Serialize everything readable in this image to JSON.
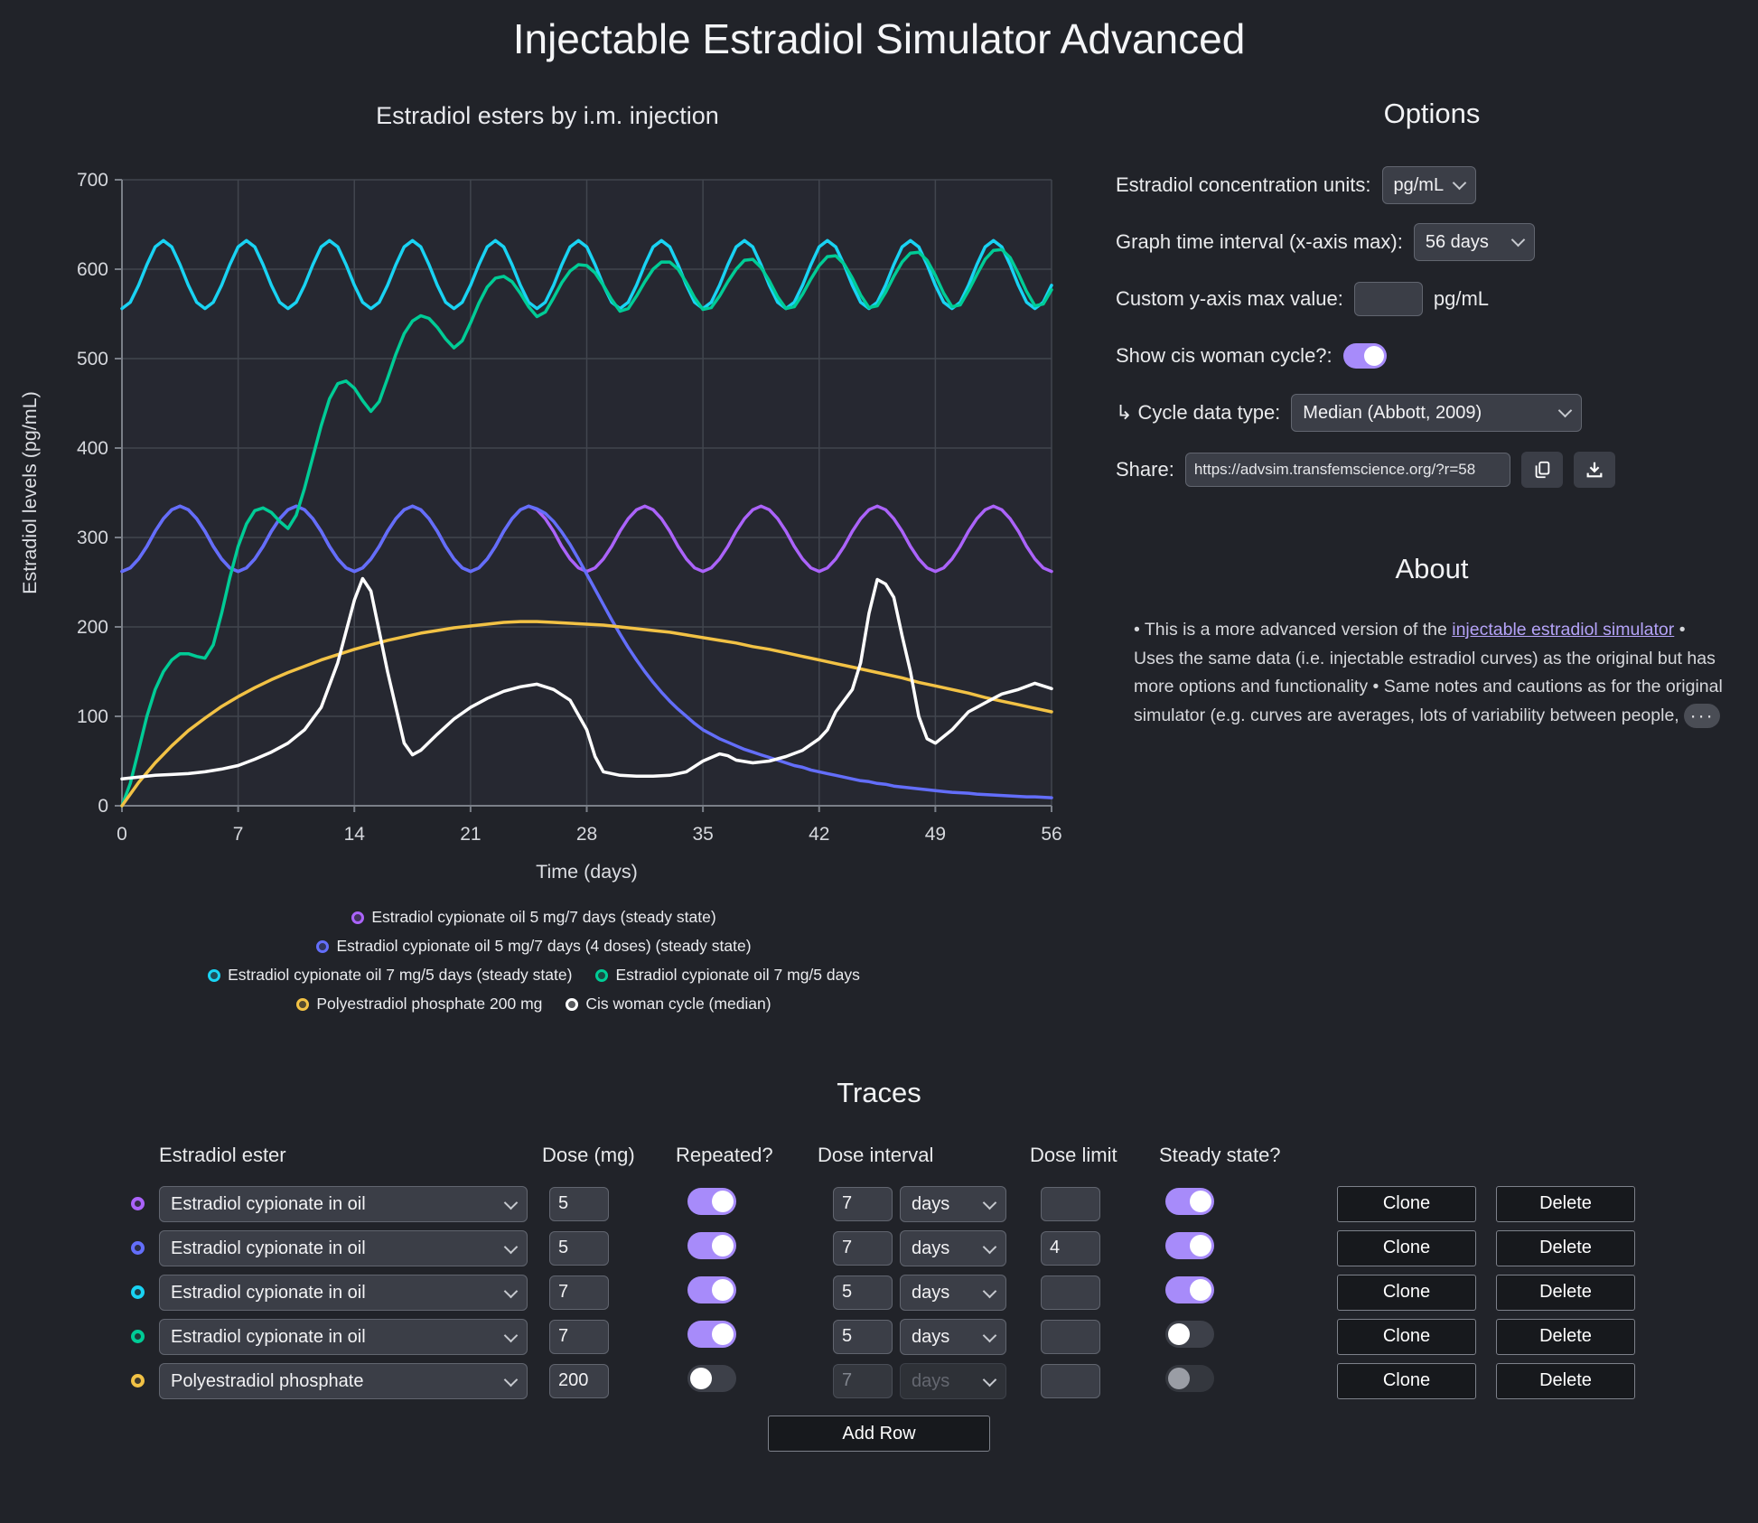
{
  "page_title": "Injectable Estradiol Simulator Advanced",
  "options": {
    "title": "Options",
    "units_label": "Estradiol concentration units:",
    "units_value": "pg/mL",
    "interval_label": "Graph time interval (x-axis max):",
    "interval_value": "56 days",
    "ymax_label": "Custom y-axis max value:",
    "ymax_value": "",
    "ymax_unit": "pg/mL",
    "cycle_toggle_label": "Show cis woman cycle?:",
    "cycle_toggle_on": true,
    "cycle_type_label": "↳ Cycle data type:",
    "cycle_type_value": "Median (Abbott, 2009)",
    "share_label": "Share:",
    "share_url": "https://advsim.transfemscience.org/?r=58"
  },
  "about": {
    "title": "About",
    "text_before_link": "• This is a more advanced version of the ",
    "link_text": "injectable estradiol simulator",
    "text_after_link": " • Uses the same data (i.e. injectable estradiol curves) as the original but has more options and functionality • Same notes and cautions as for the original simulator (e.g. curves are averages, lots of variability between people, ",
    "ellipsis": "···"
  },
  "traces": {
    "title": "Traces",
    "headers": {
      "ester": "Estradiol ester",
      "dose": "Dose (mg)",
      "repeated": "Repeated?",
      "interval": "Dose interval",
      "limit": "Dose limit",
      "steady": "Steady state?"
    },
    "buttons": {
      "clone": "Clone",
      "delete": "Delete",
      "add_row": "Add Row"
    },
    "rows": [
      {
        "color": "#ab63fa",
        "ester": "Estradiol cypionate in oil",
        "dose": "5",
        "repeated": true,
        "interval": "7",
        "interval_unit": "days",
        "interval_disabled": false,
        "limit": "",
        "steady": true,
        "steady_disabled": false
      },
      {
        "color": "#636efa",
        "ester": "Estradiol cypionate in oil",
        "dose": "5",
        "repeated": true,
        "interval": "7",
        "interval_unit": "days",
        "interval_disabled": false,
        "limit": "4",
        "steady": true,
        "steady_disabled": false
      },
      {
        "color": "#19d3f3",
        "ester": "Estradiol cypionate in oil",
        "dose": "7",
        "repeated": true,
        "interval": "5",
        "interval_unit": "days",
        "interval_disabled": false,
        "limit": "",
        "steady": true,
        "steady_disabled": false
      },
      {
        "color": "#00cc96",
        "ester": "Estradiol cypionate in oil",
        "dose": "7",
        "repeated": true,
        "interval": "5",
        "interval_unit": "days",
        "interval_disabled": false,
        "limit": "",
        "steady": false,
        "steady_disabled": false
      },
      {
        "color": "#f2c245",
        "ester": "Polyestradiol phosphate",
        "dose": "200",
        "repeated": false,
        "interval": "7",
        "interval_unit": "days",
        "interval_disabled": true,
        "limit": "",
        "steady": false,
        "steady_disabled": true
      }
    ]
  },
  "chart_data": {
    "type": "line",
    "title": "Estradiol esters by i.m. injection",
    "xlabel": "Time (days)",
    "ylabel": "Estradiol levels (pg/mL)",
    "xlim": [
      0,
      56
    ],
    "ylim": [
      0,
      700
    ],
    "xticks": [
      0,
      7,
      14,
      21,
      28,
      35,
      42,
      49,
      56
    ],
    "yticks": [
      0,
      100,
      200,
      300,
      400,
      500,
      600,
      700
    ],
    "grid": true,
    "legend_position": "bottom",
    "legend_rows": [
      [
        0
      ],
      [
        1
      ],
      [
        2,
        3
      ],
      [
        4,
        5
      ]
    ],
    "series": [
      {
        "name": "Estradiol cypionate oil 5 mg/7 days (steady state)",
        "color": "#ab63fa",
        "x0": 0,
        "dx": 0.5,
        "y": [
          262,
          266,
          276,
          290,
          307,
          321,
          331,
          335,
          331,
          321,
          307,
          290,
          276,
          266,
          262,
          266,
          276,
          290,
          307,
          321,
          331,
          335,
          331,
          321,
          307,
          290,
          276,
          266,
          262,
          266,
          276,
          290,
          307,
          321,
          331,
          335,
          331,
          321,
          307,
          290,
          276,
          266,
          262,
          266,
          276,
          290,
          307,
          321,
          331,
          335,
          331,
          321,
          307,
          290,
          276,
          266,
          262,
          266,
          276,
          290,
          307,
          321,
          331,
          335,
          331,
          321,
          307,
          290,
          276,
          266,
          262,
          266,
          276,
          290,
          307,
          321,
          331,
          335,
          331,
          321,
          307,
          290,
          276,
          266,
          262,
          266,
          276,
          290,
          307,
          321,
          331,
          335,
          331,
          321,
          307,
          290,
          276,
          266,
          262,
          266,
          276,
          290,
          307,
          321,
          331,
          335,
          331,
          321,
          307,
          290,
          276,
          266,
          262
        ]
      },
      {
        "name": "Estradiol cypionate oil 5 mg/7 days (4 doses) (steady state)",
        "color": "#636efa",
        "x0": 0,
        "dx": 0.5,
        "y": [
          262,
          266,
          276,
          290,
          307,
          321,
          331,
          335,
          331,
          321,
          307,
          290,
          276,
          266,
          262,
          266,
          276,
          290,
          307,
          321,
          331,
          335,
          331,
          321,
          307,
          290,
          276,
          266,
          262,
          266,
          276,
          290,
          307,
          321,
          331,
          335,
          331,
          321,
          307,
          290,
          276,
          266,
          262,
          266,
          276,
          290,
          307,
          321,
          331,
          335,
          332,
          327,
          318,
          306,
          292,
          276,
          259,
          242,
          225,
          208,
          192,
          177,
          163,
          150,
          138,
          127,
          117,
          108,
          100,
          92,
          85,
          80,
          75,
          71,
          67,
          63,
          60,
          57,
          54,
          51,
          48,
          45,
          43,
          40,
          38,
          36,
          34,
          32,
          30,
          28,
          27,
          25,
          24,
          22,
          21,
          20,
          19,
          18,
          17,
          16,
          15,
          14.5,
          14,
          13,
          12.5,
          12,
          11.5,
          11,
          10.5,
          10,
          10,
          9.5,
          9
        ]
      },
      {
        "name": "Estradiol cypionate oil 7 mg/5 days (steady state)",
        "color": "#19d3f3",
        "x0": 0,
        "dx": 0.5,
        "y": [
          556,
          563,
          582,
          605,
          625,
          632,
          625,
          605,
          582,
          563,
          556,
          563,
          582,
          605,
          625,
          632,
          625,
          605,
          582,
          563,
          556,
          563,
          582,
          605,
          625,
          632,
          625,
          605,
          582,
          563,
          556,
          563,
          582,
          605,
          625,
          632,
          625,
          605,
          582,
          563,
          556,
          563,
          582,
          605,
          625,
          632,
          625,
          605,
          582,
          563,
          556,
          563,
          582,
          605,
          625,
          632,
          625,
          605,
          582,
          563,
          556,
          563,
          582,
          605,
          625,
          632,
          625,
          605,
          582,
          563,
          556,
          563,
          582,
          605,
          625,
          632,
          625,
          605,
          582,
          563,
          556,
          563,
          582,
          605,
          625,
          632,
          625,
          605,
          582,
          563,
          556,
          563,
          582,
          605,
          625,
          632,
          625,
          605,
          582,
          563,
          556,
          563,
          582,
          605,
          625,
          632,
          625,
          605,
          582,
          563,
          556,
          563,
          582
        ]
      },
      {
        "name": "Estradiol cypionate oil 7 mg/5 days",
        "color": "#00cc96",
        "x0": 0,
        "dx": 0.5,
        "y": [
          0,
          25,
          62,
          100,
          130,
          150,
          163,
          170,
          170,
          167,
          165,
          180,
          215,
          255,
          290,
          315,
          330,
          333,
          328,
          318,
          310,
          325,
          355,
          390,
          425,
          455,
          472,
          475,
          467,
          453,
          441,
          452,
          478,
          505,
          528,
          542,
          548,
          545,
          535,
          522,
          512,
          520,
          540,
          562,
          580,
          590,
          592,
          586,
          573,
          558,
          547,
          552,
          568,
          585,
          598,
          605,
          604,
          596,
          582,
          566,
          553,
          556,
          570,
          586,
          600,
          608,
          608,
          600,
          585,
          568,
          555,
          557,
          570,
          586,
          600,
          610,
          611,
          602,
          587,
          569,
          556,
          558,
          572,
          589,
          604,
          614,
          615,
          606,
          590,
          571,
          557,
          559,
          574,
          592,
          608,
          618,
          619,
          610,
          593,
          573,
          558,
          560,
          576,
          594,
          611,
          621,
          622,
          613,
          595,
          575,
          559,
          561,
          577
        ]
      },
      {
        "name": "Polyestradiol phosphate 200 mg",
        "color": "#f2c245",
        "x0": 0,
        "dx": 1,
        "y": [
          0,
          26,
          48,
          67,
          84,
          98,
          111,
          122,
          132,
          141,
          149,
          156,
          163,
          169,
          175,
          180,
          185,
          189,
          193,
          196,
          199,
          201,
          203,
          205,
          206,
          206,
          205,
          204,
          203,
          202,
          200,
          198,
          196,
          194,
          191,
          188,
          185,
          182,
          178,
          175,
          171,
          167,
          163,
          159,
          155,
          151,
          147,
          143,
          138,
          134,
          130,
          126,
          121,
          117,
          113,
          109,
          105
        ]
      },
      {
        "name": "Cis woman cycle (median)",
        "color": "#ffffff",
        "x": [
          0,
          1,
          2,
          3,
          4,
          5,
          6,
          7,
          8,
          9,
          10,
          11,
          12,
          13,
          14,
          14.5,
          15,
          16,
          17,
          17.5,
          18,
          19,
          20,
          21,
          22,
          23,
          24,
          25,
          26,
          27,
          28,
          28.5,
          29,
          30,
          31,
          32,
          33,
          34,
          35,
          36,
          36.5,
          37,
          38,
          39,
          40,
          41,
          42,
          42.5,
          43,
          44,
          44.5,
          45,
          45.5,
          46,
          46.5,
          47,
          47.5,
          48,
          48.5,
          49,
          50,
          51,
          52,
          53,
          54,
          55,
          56
        ],
        "y": [
          30,
          32,
          34,
          35,
          36,
          38,
          41,
          45,
          52,
          60,
          70,
          85,
          110,
          160,
          230,
          254,
          240,
          150,
          70,
          57,
          62,
          80,
          97,
          110,
          120,
          128,
          133,
          136,
          130,
          118,
          85,
          55,
          38,
          34,
          33,
          33,
          34,
          38,
          50,
          58,
          56,
          51,
          48,
          50,
          55,
          62,
          75,
          85,
          105,
          130,
          160,
          215,
          253,
          248,
          233,
          190,
          150,
          100,
          75,
          70,
          85,
          105,
          115,
          125,
          130,
          137,
          131
        ]
      }
    ]
  },
  "colors": {
    "page_bg": "#212329",
    "plot_bg": "#262831",
    "grid": "#41454e",
    "axis": "#7a7f88",
    "accent_purple": "#a78bfa",
    "link": "#b5a3f8"
  }
}
